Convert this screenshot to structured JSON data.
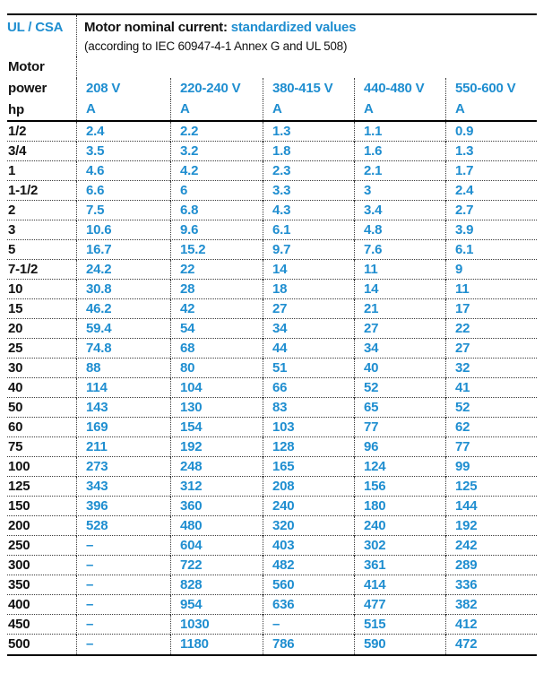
{
  "colors": {
    "accent_blue": "#1f8ed0",
    "text": "#111111"
  },
  "table": {
    "corner_label": "UL / CSA",
    "title": "Motor nominal current:",
    "title_highlight": "standardized values",
    "subtitle": "(according to IEC 60947-4-1 Annex G and UL 508)",
    "row_header_line1": "Motor",
    "row_header_line2": "power",
    "row_header_line3": "hp",
    "columns": [
      "208 V",
      "220-240 V",
      "380-415 V",
      "440-480 V",
      "550-600 V"
    ],
    "unit": "A",
    "rows": [
      {
        "hp": "1/2",
        "values": [
          "2.4",
          "2.2",
          "1.3",
          "1.1",
          "0.9"
        ]
      },
      {
        "hp": "3/4",
        "values": [
          "3.5",
          "3.2",
          "1.8",
          "1.6",
          "1.3"
        ]
      },
      {
        "hp": "1",
        "values": [
          "4.6",
          "4.2",
          "2.3",
          "2.1",
          "1.7"
        ]
      },
      {
        "hp": "1-1/2",
        "values": [
          "6.6",
          "6",
          "3.3",
          "3",
          "2.4"
        ]
      },
      {
        "hp": "2",
        "values": [
          "7.5",
          "6.8",
          "4.3",
          "3.4",
          "2.7"
        ]
      },
      {
        "hp": "3",
        "values": [
          "10.6",
          "9.6",
          "6.1",
          "4.8",
          "3.9"
        ]
      },
      {
        "hp": "5",
        "values": [
          "16.7",
          "15.2",
          "9.7",
          "7.6",
          "6.1"
        ]
      },
      {
        "hp": "7-1/2",
        "values": [
          "24.2",
          "22",
          "14",
          "11",
          "9"
        ]
      },
      {
        "hp": "10",
        "values": [
          "30.8",
          "28",
          "18",
          "14",
          "11"
        ]
      },
      {
        "hp": "15",
        "values": [
          "46.2",
          "42",
          "27",
          "21",
          "17"
        ]
      },
      {
        "hp": "20",
        "values": [
          "59.4",
          "54",
          "34",
          "27",
          "22"
        ]
      },
      {
        "hp": "25",
        "values": [
          "74.8",
          "68",
          "44",
          "34",
          "27"
        ]
      },
      {
        "hp": "30",
        "values": [
          "88",
          "80",
          "51",
          "40",
          "32"
        ]
      },
      {
        "hp": "40",
        "values": [
          "114",
          "104",
          "66",
          "52",
          "41"
        ]
      },
      {
        "hp": "50",
        "values": [
          "143",
          "130",
          "83",
          "65",
          "52"
        ]
      },
      {
        "hp": "60",
        "values": [
          "169",
          "154",
          "103",
          "77",
          "62"
        ]
      },
      {
        "hp": "75",
        "values": [
          "211",
          "192",
          "128",
          "96",
          "77"
        ]
      },
      {
        "hp": "100",
        "values": [
          "273",
          "248",
          "165",
          "124",
          "99"
        ]
      },
      {
        "hp": "125",
        "values": [
          "343",
          "312",
          "208",
          "156",
          "125"
        ]
      },
      {
        "hp": "150",
        "values": [
          "396",
          "360",
          "240",
          "180",
          "144"
        ]
      },
      {
        "hp": "200",
        "values": [
          "528",
          "480",
          "320",
          "240",
          "192"
        ]
      },
      {
        "hp": "250",
        "values": [
          "–",
          "604",
          "403",
          "302",
          "242"
        ]
      },
      {
        "hp": "300",
        "values": [
          "–",
          "722",
          "482",
          "361",
          "289"
        ]
      },
      {
        "hp": "350",
        "values": [
          "–",
          "828",
          "560",
          "414",
          "336"
        ]
      },
      {
        "hp": "400",
        "values": [
          "–",
          "954",
          "636",
          "477",
          "382"
        ]
      },
      {
        "hp": "450",
        "values": [
          "–",
          "1030",
          "–",
          "515",
          "412"
        ]
      },
      {
        "hp": "500",
        "values": [
          "–",
          "1180",
          "786",
          "590",
          "472"
        ]
      }
    ]
  }
}
